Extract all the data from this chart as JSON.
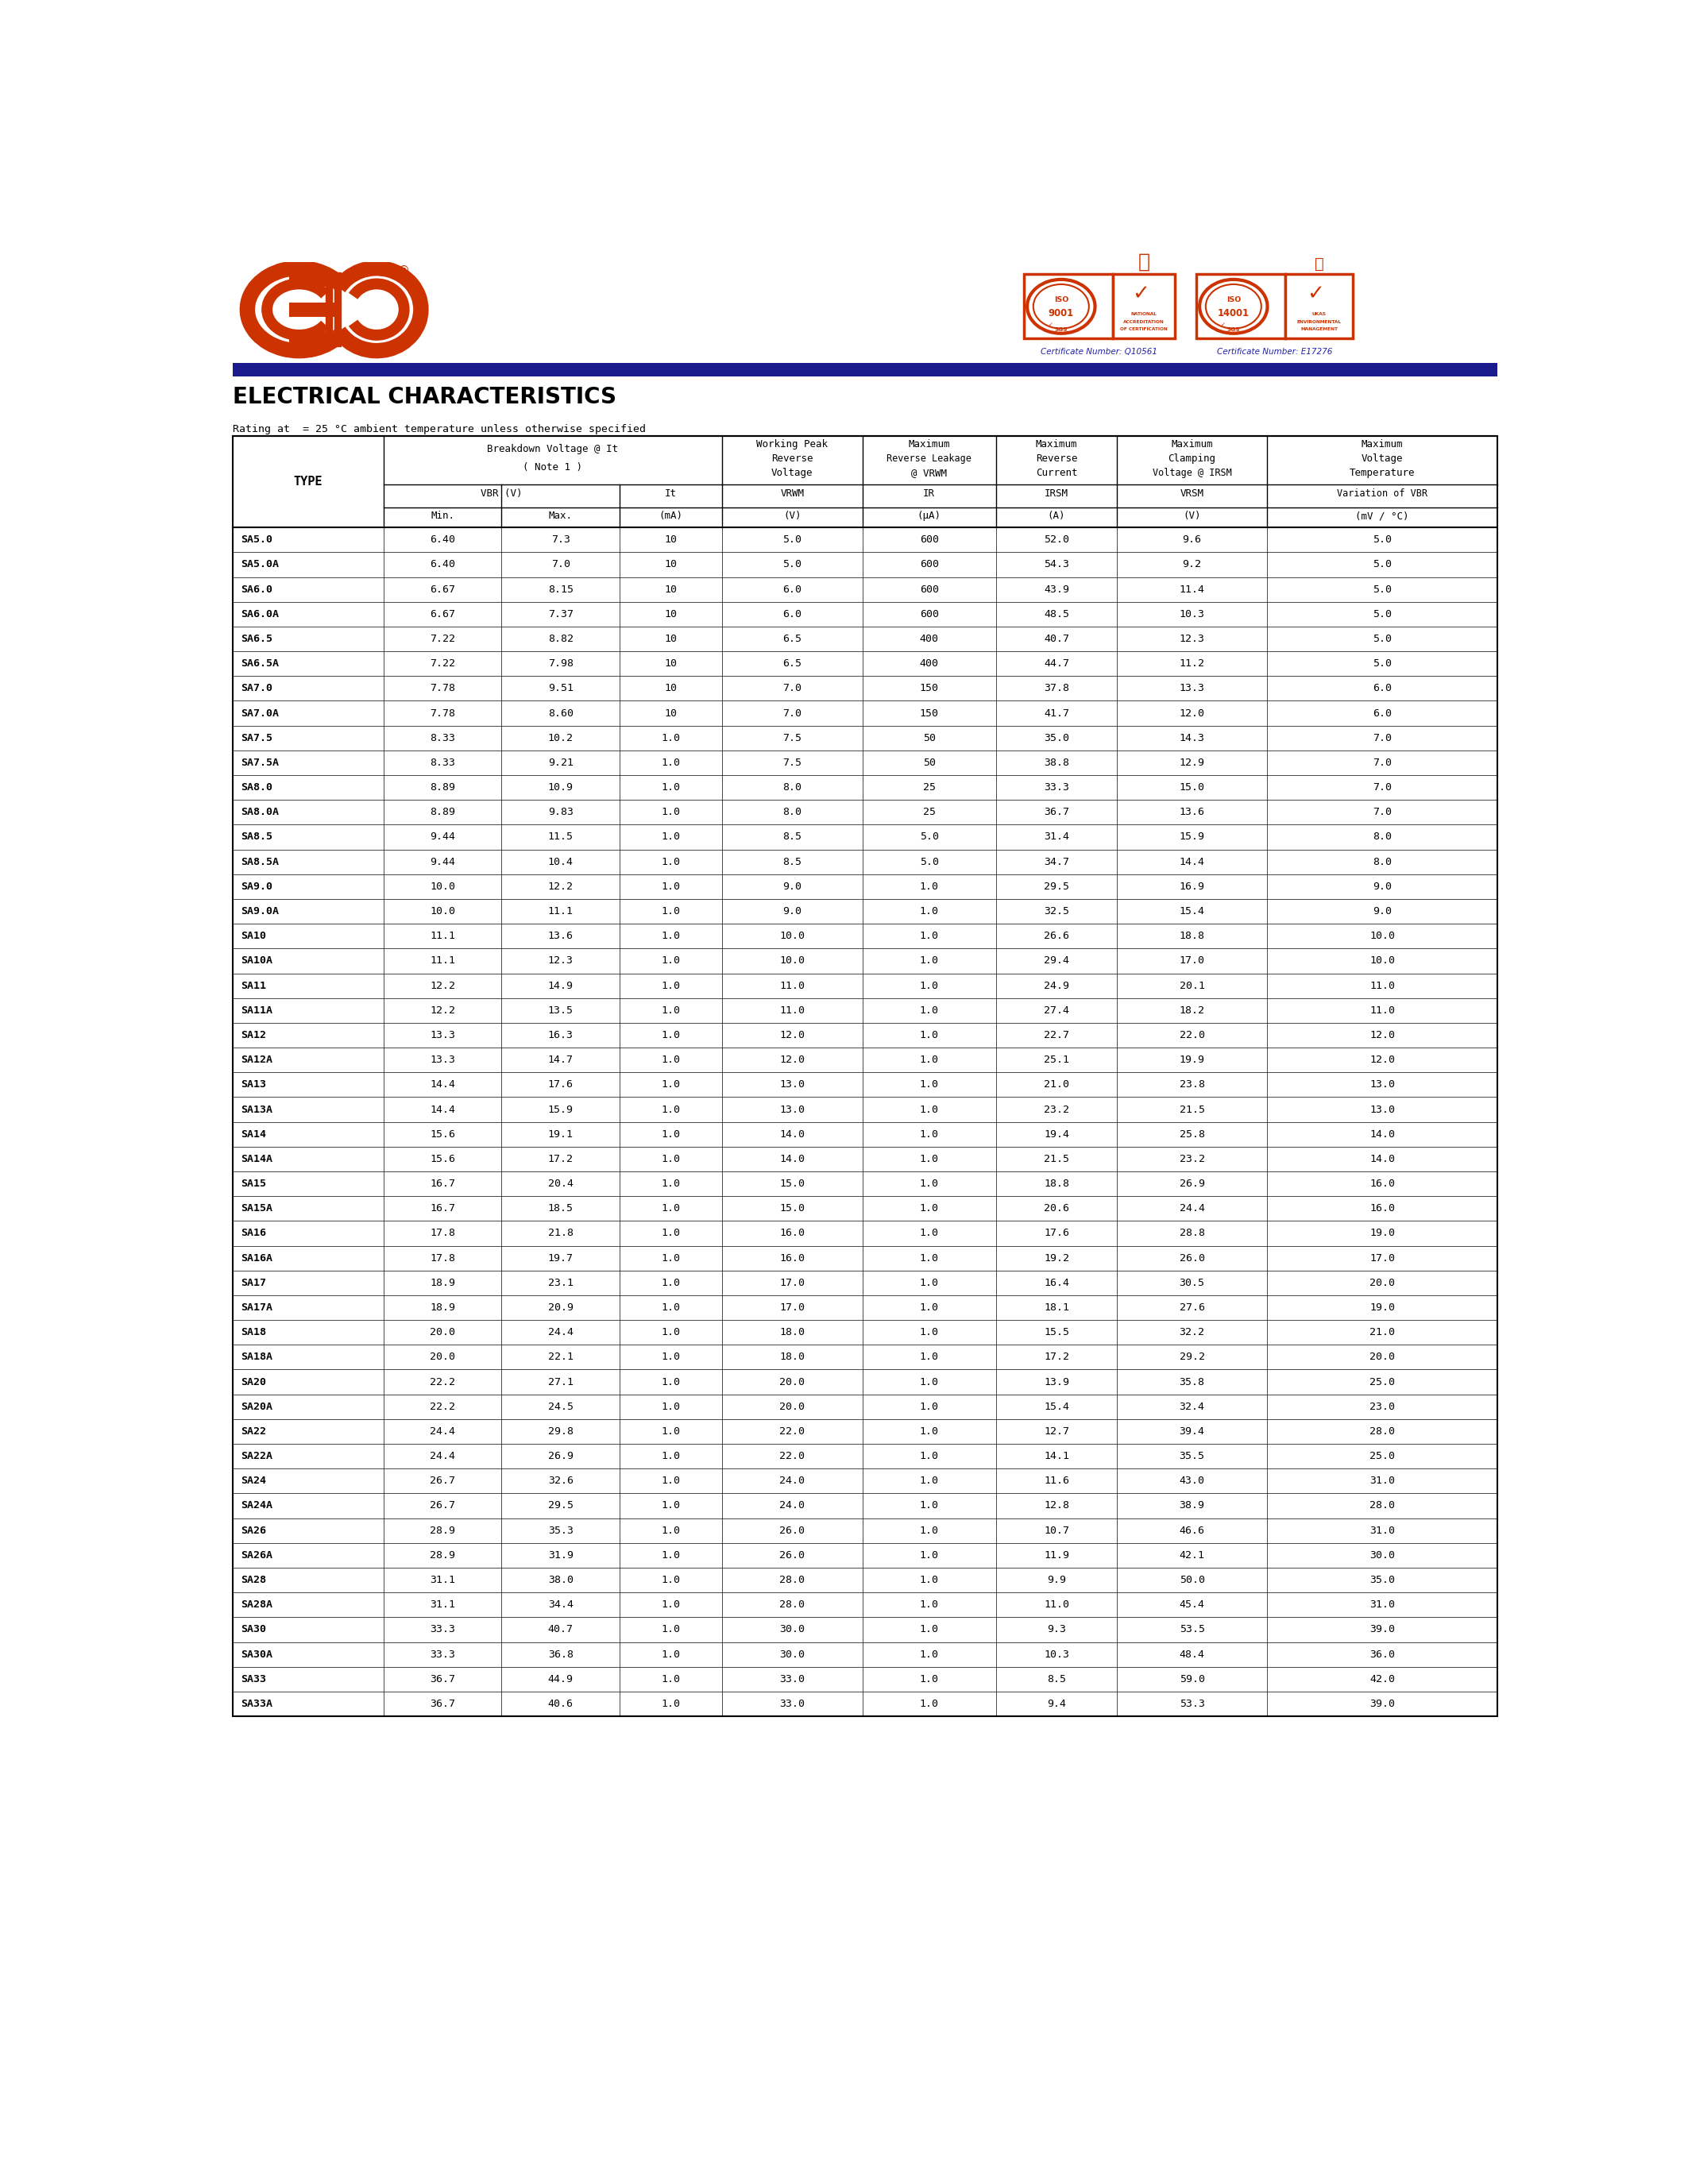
{
  "title": "ELECTRICAL CHARACTERISTICS",
  "subtitle": "Rating at  = 25 °C ambient temperature unless otherwise specified",
  "page_bg": "#ffffff",
  "header_bar_color": "#1a1a8c",
  "eic_color": "#cc3300",
  "cert1_text": "Certificate Number: Q10561",
  "cert2_text": "Certificate Number: E17276",
  "table_data": [
    [
      "SA5.0",
      "6.40",
      "7.3",
      "10",
      "5.0",
      "600",
      "52.0",
      "9.6",
      "5.0"
    ],
    [
      "SA5.0A",
      "6.40",
      "7.0",
      "10",
      "5.0",
      "600",
      "54.3",
      "9.2",
      "5.0"
    ],
    [
      "SA6.0",
      "6.67",
      "8.15",
      "10",
      "6.0",
      "600",
      "43.9",
      "11.4",
      "5.0"
    ],
    [
      "SA6.0A",
      "6.67",
      "7.37",
      "10",
      "6.0",
      "600",
      "48.5",
      "10.3",
      "5.0"
    ],
    [
      "SA6.5",
      "7.22",
      "8.82",
      "10",
      "6.5",
      "400",
      "40.7",
      "12.3",
      "5.0"
    ],
    [
      "SA6.5A",
      "7.22",
      "7.98",
      "10",
      "6.5",
      "400",
      "44.7",
      "11.2",
      "5.0"
    ],
    [
      "SA7.0",
      "7.78",
      "9.51",
      "10",
      "7.0",
      "150",
      "37.8",
      "13.3",
      "6.0"
    ],
    [
      "SA7.0A",
      "7.78",
      "8.60",
      "10",
      "7.0",
      "150",
      "41.7",
      "12.0",
      "6.0"
    ],
    [
      "SA7.5",
      "8.33",
      "10.2",
      "1.0",
      "7.5",
      "50",
      "35.0",
      "14.3",
      "7.0"
    ],
    [
      "SA7.5A",
      "8.33",
      "9.21",
      "1.0",
      "7.5",
      "50",
      "38.8",
      "12.9",
      "7.0"
    ],
    [
      "SA8.0",
      "8.89",
      "10.9",
      "1.0",
      "8.0",
      "25",
      "33.3",
      "15.0",
      "7.0"
    ],
    [
      "SA8.0A",
      "8.89",
      "9.83",
      "1.0",
      "8.0",
      "25",
      "36.7",
      "13.6",
      "7.0"
    ],
    [
      "SA8.5",
      "9.44",
      "11.5",
      "1.0",
      "8.5",
      "5.0",
      "31.4",
      "15.9",
      "8.0"
    ],
    [
      "SA8.5A",
      "9.44",
      "10.4",
      "1.0",
      "8.5",
      "5.0",
      "34.7",
      "14.4",
      "8.0"
    ],
    [
      "SA9.0",
      "10.0",
      "12.2",
      "1.0",
      "9.0",
      "1.0",
      "29.5",
      "16.9",
      "9.0"
    ],
    [
      "SA9.0A",
      "10.0",
      "11.1",
      "1.0",
      "9.0",
      "1.0",
      "32.5",
      "15.4",
      "9.0"
    ],
    [
      "SA10",
      "11.1",
      "13.6",
      "1.0",
      "10.0",
      "1.0",
      "26.6",
      "18.8",
      "10.0"
    ],
    [
      "SA10A",
      "11.1",
      "12.3",
      "1.0",
      "10.0",
      "1.0",
      "29.4",
      "17.0",
      "10.0"
    ],
    [
      "SA11",
      "12.2",
      "14.9",
      "1.0",
      "11.0",
      "1.0",
      "24.9",
      "20.1",
      "11.0"
    ],
    [
      "SA11A",
      "12.2",
      "13.5",
      "1.0",
      "11.0",
      "1.0",
      "27.4",
      "18.2",
      "11.0"
    ],
    [
      "SA12",
      "13.3",
      "16.3",
      "1.0",
      "12.0",
      "1.0",
      "22.7",
      "22.0",
      "12.0"
    ],
    [
      "SA12A",
      "13.3",
      "14.7",
      "1.0",
      "12.0",
      "1.0",
      "25.1",
      "19.9",
      "12.0"
    ],
    [
      "SA13",
      "14.4",
      "17.6",
      "1.0",
      "13.0",
      "1.0",
      "21.0",
      "23.8",
      "13.0"
    ],
    [
      "SA13A",
      "14.4",
      "15.9",
      "1.0",
      "13.0",
      "1.0",
      "23.2",
      "21.5",
      "13.0"
    ],
    [
      "SA14",
      "15.6",
      "19.1",
      "1.0",
      "14.0",
      "1.0",
      "19.4",
      "25.8",
      "14.0"
    ],
    [
      "SA14A",
      "15.6",
      "17.2",
      "1.0",
      "14.0",
      "1.0",
      "21.5",
      "23.2",
      "14.0"
    ],
    [
      "SA15",
      "16.7",
      "20.4",
      "1.0",
      "15.0",
      "1.0",
      "18.8",
      "26.9",
      "16.0"
    ],
    [
      "SA15A",
      "16.7",
      "18.5",
      "1.0",
      "15.0",
      "1.0",
      "20.6",
      "24.4",
      "16.0"
    ],
    [
      "SA16",
      "17.8",
      "21.8",
      "1.0",
      "16.0",
      "1.0",
      "17.6",
      "28.8",
      "19.0"
    ],
    [
      "SA16A",
      "17.8",
      "19.7",
      "1.0",
      "16.0",
      "1.0",
      "19.2",
      "26.0",
      "17.0"
    ],
    [
      "SA17",
      "18.9",
      "23.1",
      "1.0",
      "17.0",
      "1.0",
      "16.4",
      "30.5",
      "20.0"
    ],
    [
      "SA17A",
      "18.9",
      "20.9",
      "1.0",
      "17.0",
      "1.0",
      "18.1",
      "27.6",
      "19.0"
    ],
    [
      "SA18",
      "20.0",
      "24.4",
      "1.0",
      "18.0",
      "1.0",
      "15.5",
      "32.2",
      "21.0"
    ],
    [
      "SA18A",
      "20.0",
      "22.1",
      "1.0",
      "18.0",
      "1.0",
      "17.2",
      "29.2",
      "20.0"
    ],
    [
      "SA20",
      "22.2",
      "27.1",
      "1.0",
      "20.0",
      "1.0",
      "13.9",
      "35.8",
      "25.0"
    ],
    [
      "SA20A",
      "22.2",
      "24.5",
      "1.0",
      "20.0",
      "1.0",
      "15.4",
      "32.4",
      "23.0"
    ],
    [
      "SA22",
      "24.4",
      "29.8",
      "1.0",
      "22.0",
      "1.0",
      "12.7",
      "39.4",
      "28.0"
    ],
    [
      "SA22A",
      "24.4",
      "26.9",
      "1.0",
      "22.0",
      "1.0",
      "14.1",
      "35.5",
      "25.0"
    ],
    [
      "SA24",
      "26.7",
      "32.6",
      "1.0",
      "24.0",
      "1.0",
      "11.6",
      "43.0",
      "31.0"
    ],
    [
      "SA24A",
      "26.7",
      "29.5",
      "1.0",
      "24.0",
      "1.0",
      "12.8",
      "38.9",
      "28.0"
    ],
    [
      "SA26",
      "28.9",
      "35.3",
      "1.0",
      "26.0",
      "1.0",
      "10.7",
      "46.6",
      "31.0"
    ],
    [
      "SA26A",
      "28.9",
      "31.9",
      "1.0",
      "26.0",
      "1.0",
      "11.9",
      "42.1",
      "30.0"
    ],
    [
      "SA28",
      "31.1",
      "38.0",
      "1.0",
      "28.0",
      "1.0",
      "9.9",
      "50.0",
      "35.0"
    ],
    [
      "SA28A",
      "31.1",
      "34.4",
      "1.0",
      "28.0",
      "1.0",
      "11.0",
      "45.4",
      "31.0"
    ],
    [
      "SA30",
      "33.3",
      "40.7",
      "1.0",
      "30.0",
      "1.0",
      "9.3",
      "53.5",
      "39.0"
    ],
    [
      "SA30A",
      "33.3",
      "36.8",
      "1.0",
      "30.0",
      "1.0",
      "10.3",
      "48.4",
      "36.0"
    ],
    [
      "SA33",
      "36.7",
      "44.9",
      "1.0",
      "33.0",
      "1.0",
      "8.5",
      "59.0",
      "42.0"
    ],
    [
      "SA33A",
      "36.7",
      "40.6",
      "1.0",
      "33.0",
      "1.0",
      "9.4",
      "53.3",
      "39.0"
    ]
  ]
}
